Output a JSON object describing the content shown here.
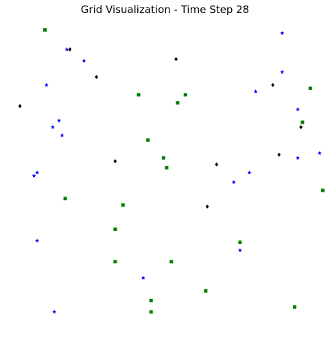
{
  "chart_data": {
    "type": "scatter",
    "title": "Grid Visualization - Time Step 28",
    "xlabel": "",
    "ylabel": "",
    "axes_visible": false,
    "grid": false,
    "legend": "none",
    "xlim": [
      0,
      20
    ],
    "ylim": [
      0,
      19
    ],
    "series": [
      {
        "color": "#008000",
        "marker": "square",
        "points": [
          [
            2,
            18
          ],
          [
            8,
            14
          ],
          [
            11,
            14
          ],
          [
            10.5,
            13.5
          ],
          [
            19,
            14.4
          ],
          [
            18.5,
            12.3
          ],
          [
            8.6,
            11.2
          ],
          [
            9.6,
            10.1
          ],
          [
            9.8,
            9.5
          ],
          [
            3.3,
            7.6
          ],
          [
            7,
            7.2
          ],
          [
            19.8,
            8.1
          ],
          [
            6.5,
            5.7
          ],
          [
            14.5,
            4.9
          ],
          [
            6.5,
            3.7
          ],
          [
            10.1,
            3.7
          ],
          [
            12.3,
            1.9
          ],
          [
            8.8,
            1.3
          ],
          [
            18,
            0.9
          ],
          [
            8.8,
            0.6
          ]
        ]
      },
      {
        "color": "#0000ff",
        "marker": "star",
        "points": [
          [
            17.2,
            17.8
          ],
          [
            3.4,
            16.8
          ],
          [
            4.5,
            16.1
          ],
          [
            17.2,
            15.4
          ],
          [
            2.1,
            14.6
          ],
          [
            15.5,
            14.2
          ],
          [
            18.2,
            13.1
          ],
          [
            2.9,
            12.4
          ],
          [
            2.5,
            12.0
          ],
          [
            3.1,
            11.5
          ],
          [
            18.2,
            10.1
          ],
          [
            19.6,
            10.4
          ],
          [
            1.5,
            9.2
          ],
          [
            1.3,
            9.0
          ],
          [
            15.1,
            9.2
          ],
          [
            14.1,
            8.6
          ],
          [
            1.5,
            5.0
          ],
          [
            14.5,
            4.4
          ],
          [
            8.3,
            2.7
          ],
          [
            2.6,
            0.6
          ]
        ]
      },
      {
        "color": "#000000",
        "marker": "diamond",
        "points": [
          [
            3.6,
            16.8
          ],
          [
            10.4,
            16.2
          ],
          [
            5.3,
            15.1
          ],
          [
            16.6,
            14.6
          ],
          [
            0.4,
            13.3
          ],
          [
            18.4,
            12.0
          ],
          [
            17,
            10.3
          ],
          [
            6.5,
            9.9
          ],
          [
            13,
            9.7
          ],
          [
            12.4,
            7.1
          ]
        ]
      }
    ]
  }
}
